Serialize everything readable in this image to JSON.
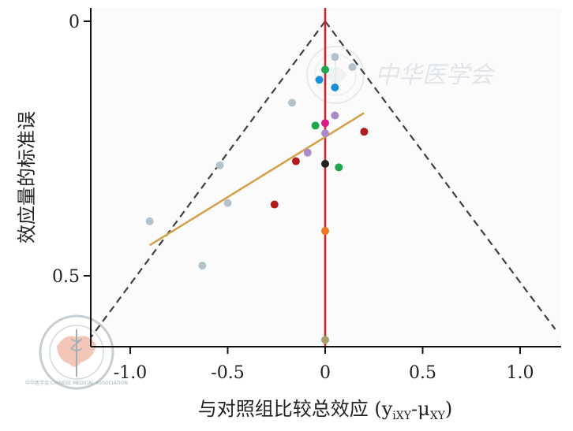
{
  "chart_data": {
    "type": "scatter",
    "title": "",
    "xlabel": "与对照组比较总效应 (y",
    "xlabel_sub1": "iXY",
    "xlabel_mid": "-μ",
    "xlabel_sub2": "XY",
    "xlabel_end": ")",
    "ylabel": "效应量的标准误",
    "xlim": [
      -1.2,
      1.2
    ],
    "ylim_reversed": [
      0,
      0.63
    ],
    "x_ticks": [
      -1.0,
      -0.5,
      0,
      0.5,
      1.0
    ],
    "x_tick_labels": [
      "-1.0",
      "-0.5",
      "0",
      "0.5",
      "1.0"
    ],
    "y_ticks": [
      0,
      0.5
    ],
    "y_tick_labels": [
      "0",
      "0.5"
    ],
    "funnel_apex": [
      0,
      0
    ],
    "funnel_slope_se_per_unit": 0.5,
    "reference_line_x": 0,
    "regression_line": [
      [
        -0.9,
        0.44
      ],
      [
        0.2,
        0.18
      ]
    ],
    "points": [
      {
        "x": 0.05,
        "y": 0.07,
        "color": "#b2c3cc"
      },
      {
        "x": 0.14,
        "y": 0.09,
        "color": "#b2c3cc"
      },
      {
        "x": 0.0,
        "y": 0.095,
        "color": "#1fa64b"
      },
      {
        "x": -0.03,
        "y": 0.115,
        "color": "#1a8fd6"
      },
      {
        "x": 0.05,
        "y": 0.13,
        "color": "#1a8fd6"
      },
      {
        "x": -0.17,
        "y": 0.16,
        "color": "#b2c3cc"
      },
      {
        "x": 0.05,
        "y": 0.185,
        "color": "#a98bc9"
      },
      {
        "x": 0.0,
        "y": 0.2,
        "color": "#e01a8b"
      },
      {
        "x": -0.05,
        "y": 0.205,
        "color": "#1fa64b"
      },
      {
        "x": 0.0,
        "y": 0.22,
        "color": "#a98bc9"
      },
      {
        "x": 0.2,
        "y": 0.217,
        "color": "#b01c1c"
      },
      {
        "x": -0.09,
        "y": 0.258,
        "color": "#a98bc9"
      },
      {
        "x": -0.15,
        "y": 0.275,
        "color": "#b01c1c"
      },
      {
        "x": 0.0,
        "y": 0.28,
        "color": "#222222"
      },
      {
        "x": 0.07,
        "y": 0.287,
        "color": "#1fa64b"
      },
      {
        "x": -0.54,
        "y": 0.283,
        "color": "#b2c3cc"
      },
      {
        "x": -0.5,
        "y": 0.357,
        "color": "#b2c3cc"
      },
      {
        "x": -0.26,
        "y": 0.36,
        "color": "#b01c1c"
      },
      {
        "x": -0.9,
        "y": 0.393,
        "color": "#b2c3cc"
      },
      {
        "x": 0.0,
        "y": 0.412,
        "color": "#f07820"
      },
      {
        "x": -0.63,
        "y": 0.48,
        "color": "#b2c3cc"
      },
      {
        "x": 0.0,
        "y": 0.626,
        "color": "#a8a066"
      }
    ],
    "colors": {
      "reference_line": "#d62020",
      "funnel_line": "#404040",
      "regression_line": "#d4a04a",
      "axis": "#111111"
    }
  },
  "watermark": {
    "text": "中华医学会",
    "logo_text": "中华医学会 CHINESE MEDICAL ASSOCIATION"
  }
}
